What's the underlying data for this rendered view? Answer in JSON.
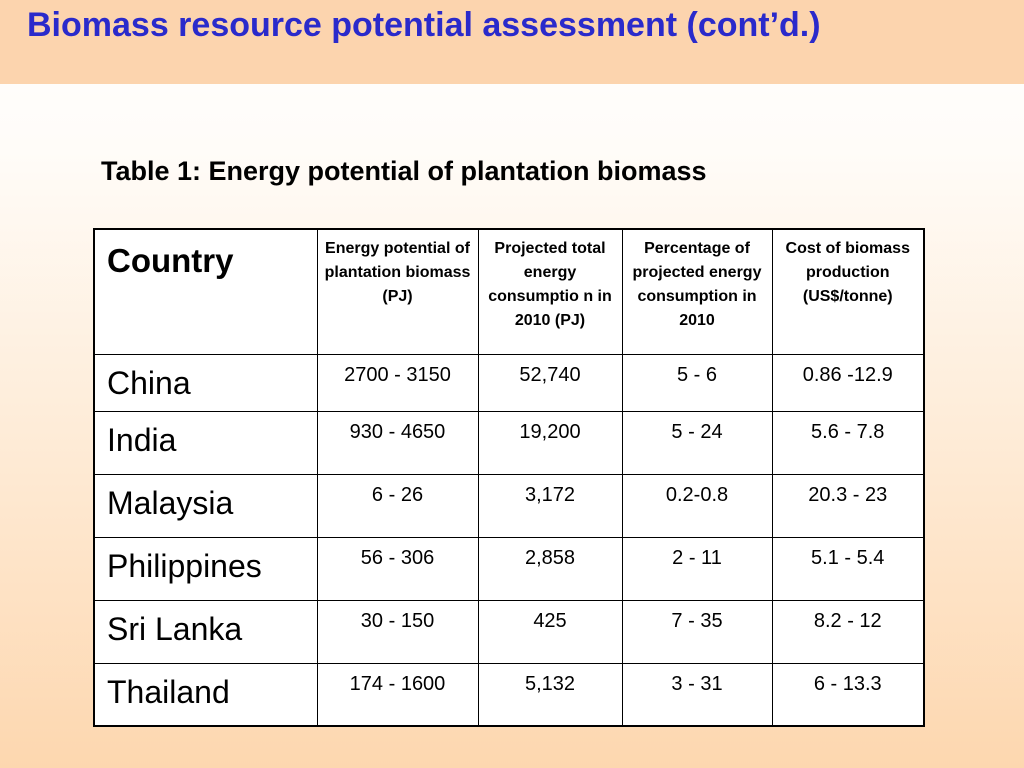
{
  "slide": {
    "title": "Biomass resource potential assessment (cont’d.)"
  },
  "table": {
    "caption": "Table 1:  Energy potential of plantation biomass",
    "headers": [
      "Country",
      "Energy potential of plantation biomass (PJ)",
      "Projected total energy consumptio n in 2010 (PJ)",
      "Percentage of projected energy consumption in 2010",
      "Cost of biomass production (US$/tonne)"
    ],
    "rows": [
      {
        "country": "China",
        "potential": "2700 - 3150",
        "consumption": "52,740",
        "percentage": "5 - 6",
        "cost": "0.86 -12.9"
      },
      {
        "country": "India",
        "potential": "930 - 4650",
        "consumption": "19,200",
        "percentage": "5 - 24",
        "cost": "5.6 - 7.8"
      },
      {
        "country": "Malaysia",
        "potential": "6 - 26",
        "consumption": "3,172",
        "percentage": "0.2-0.8",
        "cost": "20.3 - 23"
      },
      {
        "country": "Philippines",
        "potential": "56 - 306",
        "consumption": "2,858",
        "percentage": "2 - 11",
        "cost": "5.1 - 5.4"
      },
      {
        "country": "Sri Lanka",
        "potential": "30 - 150",
        "consumption": "425",
        "percentage": "7 - 35",
        "cost": "8.2 - 12"
      },
      {
        "country": "Thailand",
        "potential": "174 - 1600",
        "consumption": "5,132",
        "percentage": "3 - 31",
        "cost": "6 - 13.3"
      }
    ]
  },
  "colors": {
    "title_text": "#2a2acb",
    "title_band": "#fcd4ae",
    "background_bottom": "#fdd7af"
  }
}
